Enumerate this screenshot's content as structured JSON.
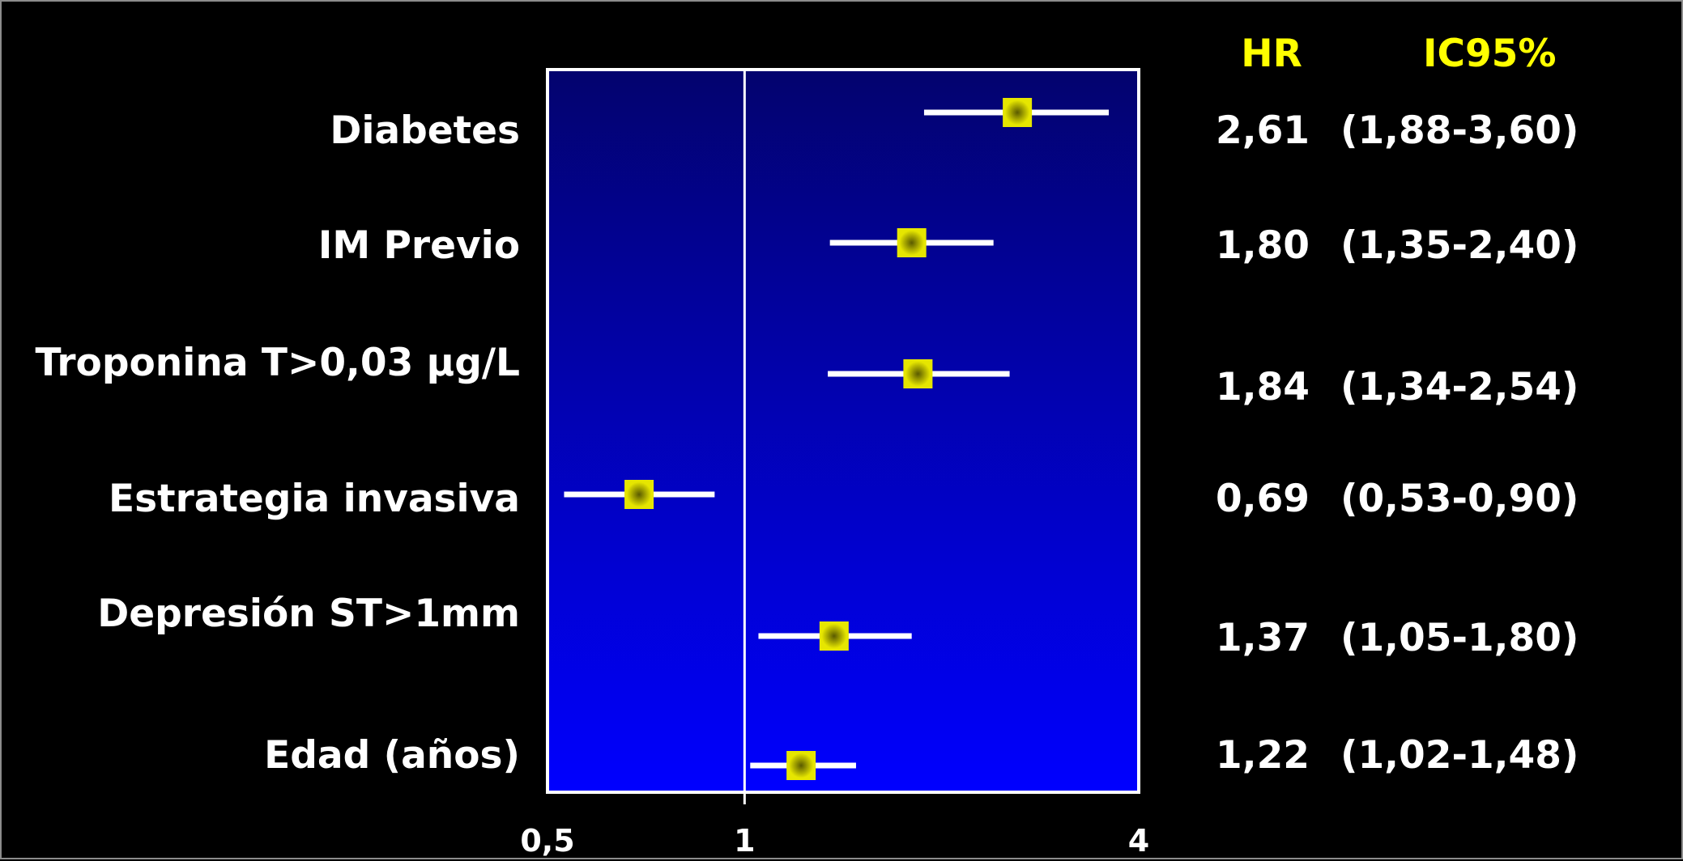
{
  "colors": {
    "background": "#000000",
    "panel_top": "#03036e",
    "panel_bottom": "#0000ff",
    "marker": "#e6e600",
    "marker_center": "#5a5a00",
    "header": "#ffff00",
    "text": "#ffffff"
  },
  "chart_data": {
    "type": "forest",
    "x_scale": "log",
    "xlim": [
      0.5,
      4
    ],
    "reference_line": 1,
    "x_ticks": [
      "0,5",
      "1",
      "4"
    ],
    "column_headers": {
      "hr": "HR",
      "ci": "IC95%"
    },
    "rows": [
      {
        "label": "Diabetes",
        "hr": 2.61,
        "lower": 1.88,
        "upper": 3.6,
        "hr_text": "2,61",
        "ci_text": "(1,88-3,60)"
      },
      {
        "label": "IM Previo",
        "hr": 1.8,
        "lower": 1.35,
        "upper": 2.4,
        "hr_text": "1,80",
        "ci_text": "(1,35-2,40)"
      },
      {
        "label": "Troponina T>0,03 µg/L",
        "hr": 1.84,
        "lower": 1.34,
        "upper": 2.54,
        "hr_text": "1,84",
        "ci_text": "(1,34-2,54)"
      },
      {
        "label": "Estrategia invasiva",
        "hr": 0.69,
        "lower": 0.53,
        "upper": 0.9,
        "hr_text": "0,69",
        "ci_text": "(0,53-0,90)"
      },
      {
        "label": "Depresión ST>1mm",
        "hr": 1.37,
        "lower": 1.05,
        "upper": 1.8,
        "hr_text": "1,37",
        "ci_text": "(1,05-1,80)"
      },
      {
        "label": "Edad (años)",
        "hr": 1.22,
        "lower": 1.02,
        "upper": 1.48,
        "hr_text": "1,22",
        "ci_text": "(1,02-1,48)"
      }
    ]
  }
}
